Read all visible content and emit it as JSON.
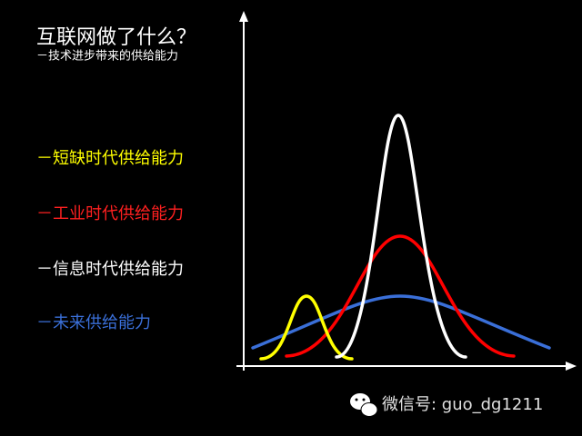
{
  "title": "互联网做了什么？",
  "subtitle": "－技术进步带来的供给能力",
  "legend": [
    "－短缺时代供给能力",
    "－工业时代供给能力",
    "－信息时代供给能力",
    "－未来供给能力"
  ],
  "watermark": "微信号: guo_dg1211"
}
